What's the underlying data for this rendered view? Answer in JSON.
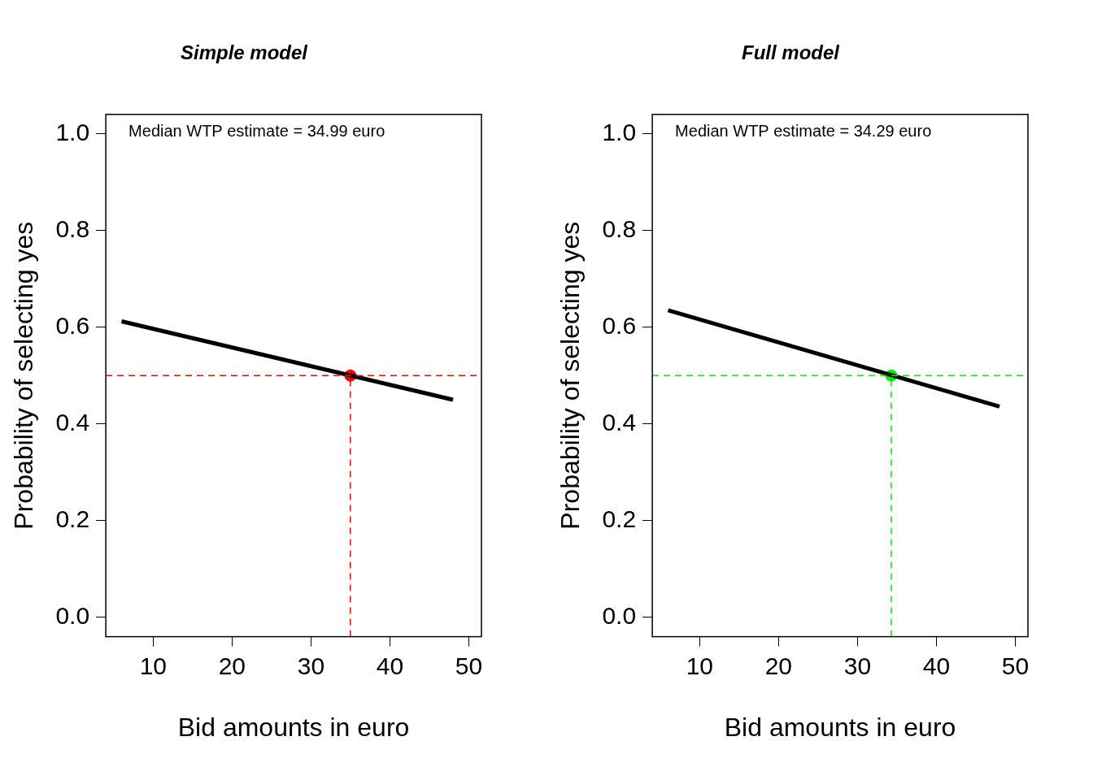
{
  "chart_data": [
    {
      "type": "line",
      "title": "Simple model",
      "x_label": "Bid amounts in euro",
      "y_label": "Probability of selecting yes",
      "annotation": "Median WTP estimate = 34.99 euro",
      "x": [
        6,
        48
      ],
      "series": [
        {
          "values": [
            0.612,
            0.45
          ],
          "color": "#000000",
          "line_style": "solid"
        }
      ],
      "median_point": {
        "x": 34.99,
        "y": 0.5,
        "color": "#ff0000",
        "line_style": "dashed"
      },
      "xlim": [
        4,
        51.6
      ],
      "xticks": [
        10,
        20,
        30,
        40,
        50
      ],
      "ylim": [
        -0.04,
        1.04
      ],
      "yticks": [
        {
          "value": 0,
          "label": "0.0"
        },
        0.2,
        0.4,
        0.6,
        0.8,
        {
          "value": 1,
          "label": "1.0"
        }
      ],
      "grid": false
    },
    {
      "type": "line",
      "title": "Full model",
      "x_label": "Bid amounts in euro",
      "y_label": "Probability of selecting yes",
      "annotation": "Median WTP estimate = 34.29 euro",
      "x": [
        6,
        48
      ],
      "series": [
        {
          "values": [
            0.635,
            0.436
          ],
          "color": "#000000",
          "line_style": "solid"
        }
      ],
      "median_point": {
        "x": 34.29,
        "y": 0.5,
        "color": "#00ee00",
        "line_style": "dashed"
      },
      "xlim": [
        4,
        51.6
      ],
      "xticks": [
        10,
        20,
        30,
        40,
        50
      ],
      "ylim": [
        -0.04,
        1.04
      ],
      "yticks": [
        {
          "value": 0,
          "label": "0.0"
        },
        0.2,
        0.4,
        0.6,
        0.8,
        {
          "value": 1,
          "label": "1.0"
        }
      ],
      "grid": false
    }
  ]
}
